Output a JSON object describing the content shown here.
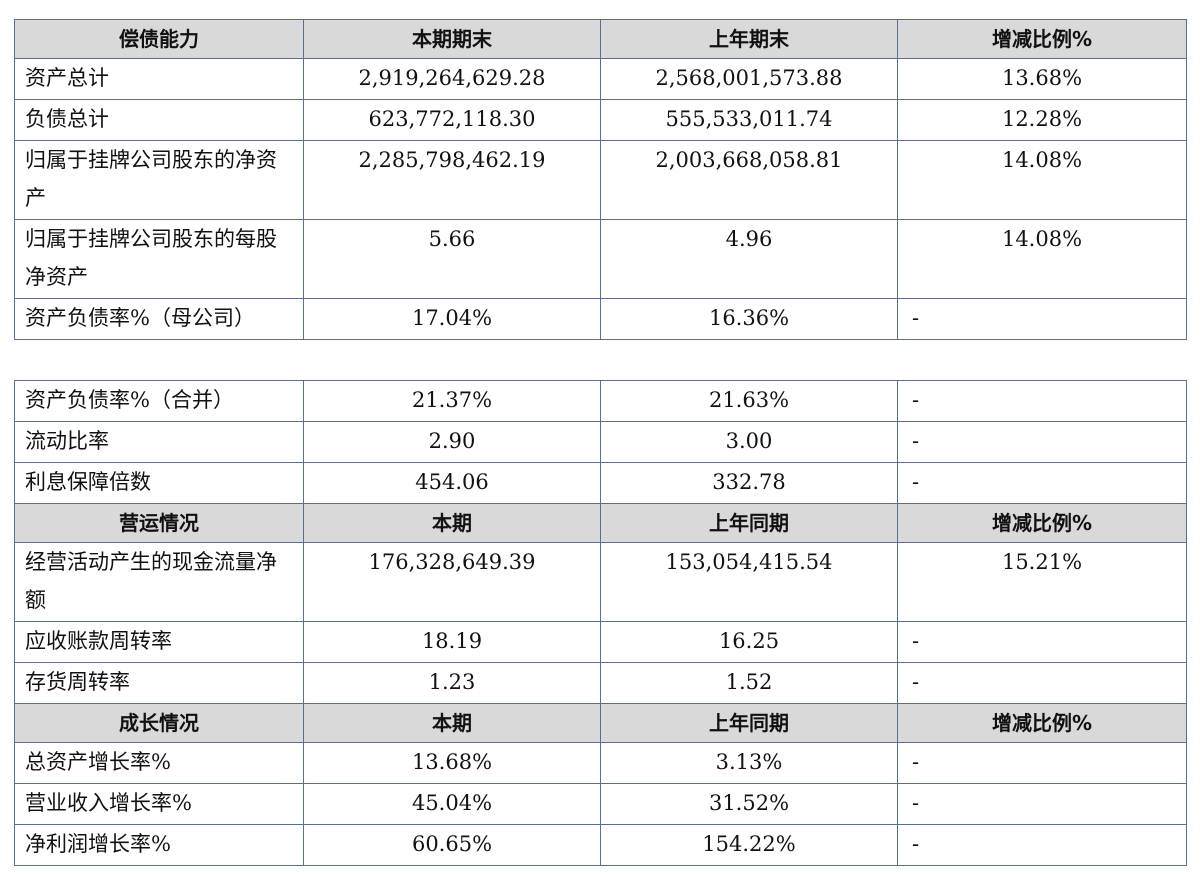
{
  "table1": {
    "header": [
      "偿债能力",
      "本期期末",
      "上年期末",
      "增减比例%"
    ],
    "rows": [
      {
        "label": "资产总计",
        "current": "2,919,264,629.28",
        "previous": "2,568,001,573.88",
        "change": "13.68%"
      },
      {
        "label": "负债总计",
        "current": "623,772,118.30",
        "previous": "555,533,011.74",
        "change": "12.28%"
      },
      {
        "label": "归属于挂牌公司股东的净资产",
        "current": "2,285,798,462.19",
        "previous": "2,003,668,058.81",
        "change": "14.08%"
      },
      {
        "label": "归属于挂牌公司股东的每股净资产",
        "current": "5.66",
        "previous": "4.96",
        "change": "14.08%"
      },
      {
        "label": "资产负债率%（母公司）",
        "current": "17.04%",
        "previous": "16.36%",
        "change": "-"
      }
    ]
  },
  "table2": {
    "solvency_rows": [
      {
        "label": "资产负债率%（合并）",
        "current": "21.37%",
        "previous": "21.63%",
        "change": "-"
      },
      {
        "label": "流动比率",
        "current": "2.90",
        "previous": "3.00",
        "change": "-"
      },
      {
        "label": "利息保障倍数",
        "current": "454.06",
        "previous": "332.78",
        "change": "-"
      }
    ],
    "operation_header": [
      "营运情况",
      "本期",
      "上年同期",
      "增减比例%"
    ],
    "operation_rows": [
      {
        "label": "经营活动产生的现金流量净额",
        "current": "176,328,649.39",
        "previous": "153,054,415.54",
        "change": "15.21%"
      },
      {
        "label": "应收账款周转率",
        "current": "18.19",
        "previous": "16.25",
        "change": "-"
      },
      {
        "label": "存货周转率",
        "current": "1.23",
        "previous": "1.52",
        "change": "-"
      }
    ],
    "growth_header": [
      "成长情况",
      "本期",
      "上年同期",
      "增减比例%"
    ],
    "growth_rows": [
      {
        "label": "总资产增长率%",
        "current": "13.68%",
        "previous": "3.13%",
        "change": "-"
      },
      {
        "label": "营业收入增长率%",
        "current": "45.04%",
        "previous": "31.52%",
        "change": "-"
      },
      {
        "label": "净利润增长率%",
        "current": "60.65%",
        "previous": "154.22%",
        "change": "-"
      }
    ]
  }
}
